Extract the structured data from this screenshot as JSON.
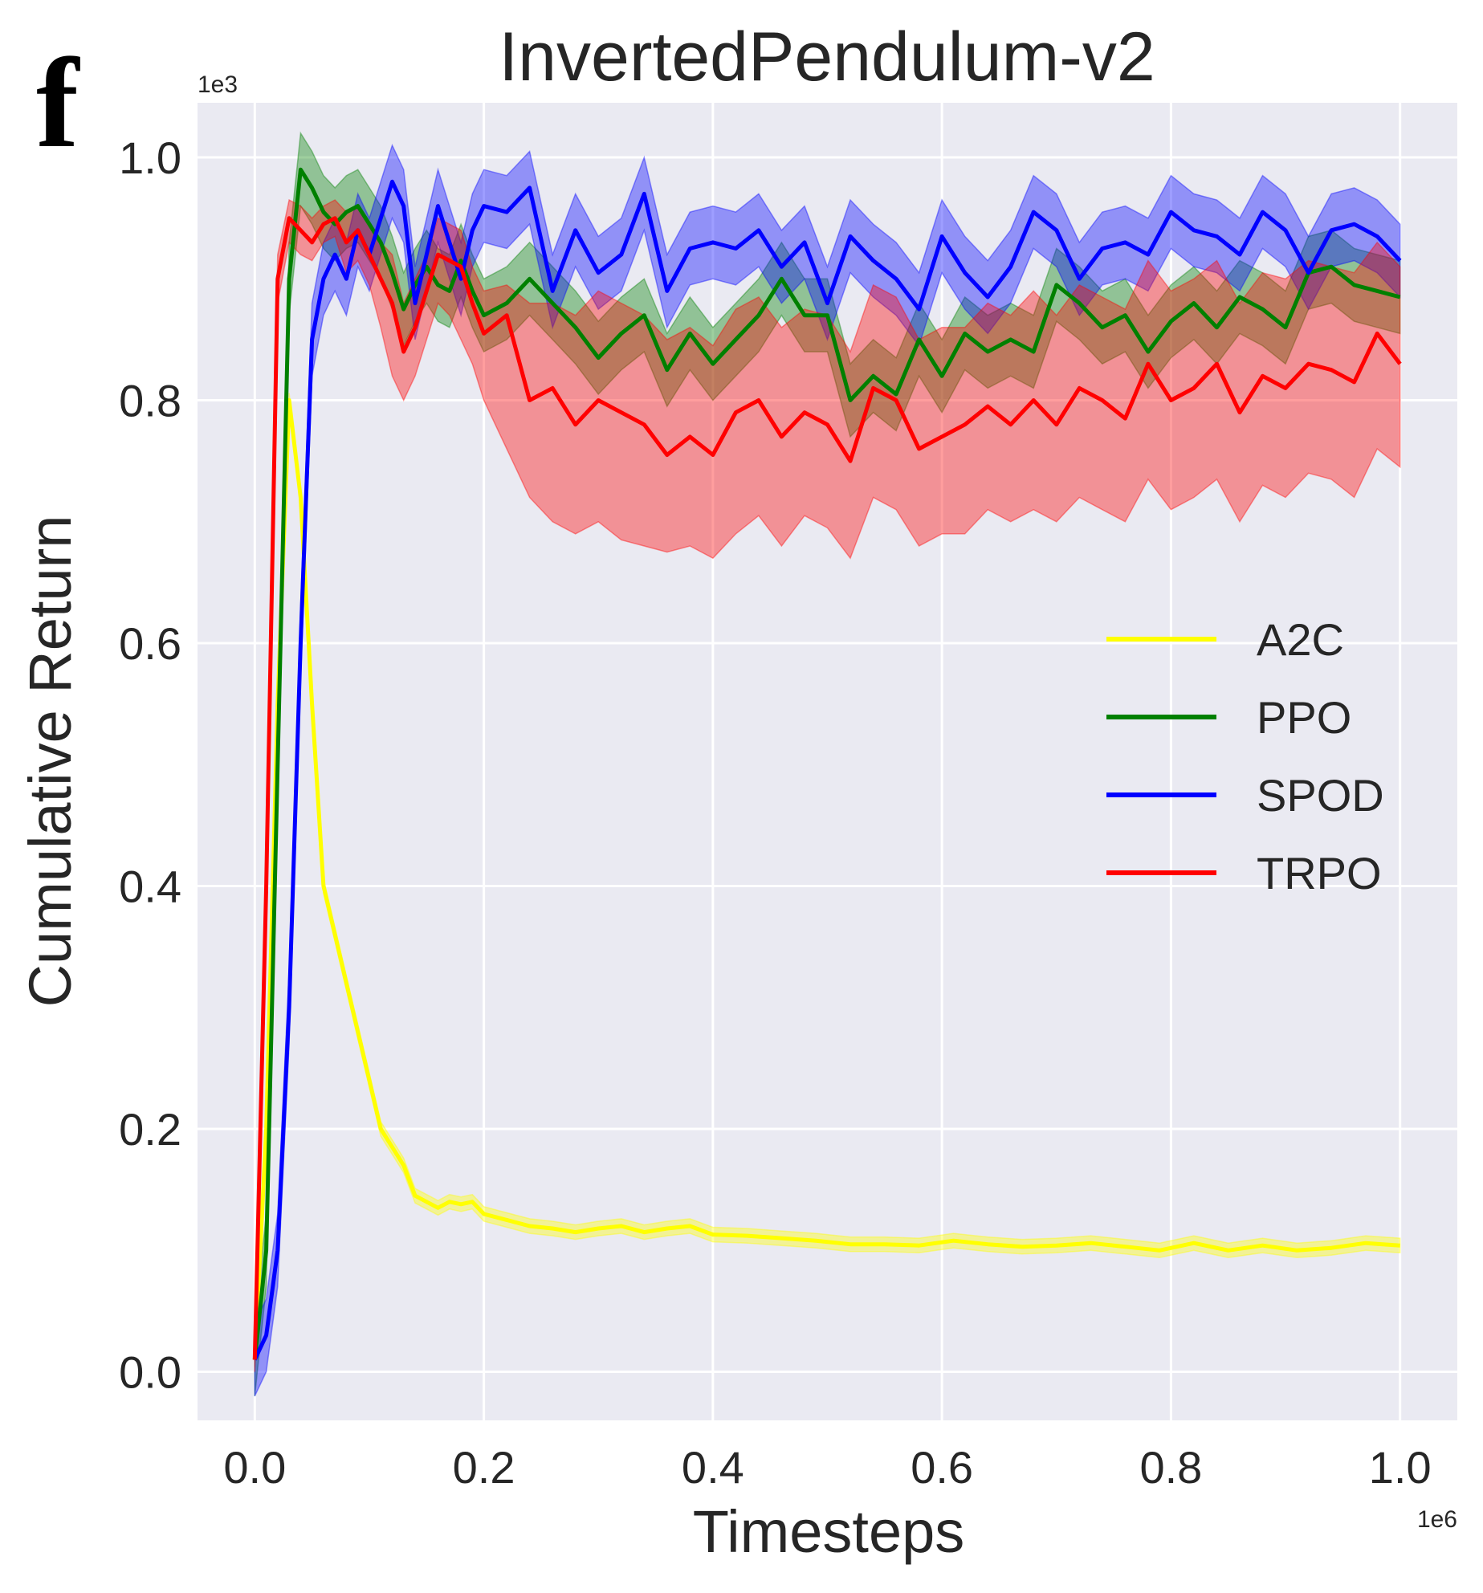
{
  "panel_letter": "f",
  "colors": {
    "plot_bg": "#EAEAF2",
    "grid": "#FFFFFF",
    "A2C": "#FFFF00",
    "PPO": "#008000",
    "SPOD": "#0000FF",
    "TRPO": "#FF0000"
  },
  "chart_data": {
    "type": "line",
    "title": "InvertedPendulum-v2",
    "xlabel": "Timesteps",
    "ylabel": "Cumulative Return",
    "x_multiplier": "1e6",
    "y_multiplier": "1e3",
    "xlim": [
      -0.05,
      1.05
    ],
    "ylim": [
      -0.04,
      1.045
    ],
    "xticks": [
      0.0,
      0.2,
      0.4,
      0.6,
      0.8,
      1.0
    ],
    "xtick_labels": [
      "0.0",
      "0.2",
      "0.4",
      "0.6",
      "0.8",
      "1.0"
    ],
    "yticks": [
      0.0,
      0.2,
      0.4,
      0.6,
      0.8,
      1.0
    ],
    "ytick_labels": [
      "0.0",
      "0.2",
      "0.4",
      "0.6",
      "0.8",
      "1.0"
    ],
    "grid": true,
    "legend_position": "center-right",
    "series": [
      {
        "name": "A2C",
        "color": "#FFFF00",
        "x": [
          0.0,
          0.01,
          0.02,
          0.03,
          0.04,
          0.05,
          0.06,
          0.07,
          0.08,
          0.09,
          0.1,
          0.11,
          0.12,
          0.13,
          0.14,
          0.15,
          0.16,
          0.17,
          0.18,
          0.19,
          0.2,
          0.22,
          0.24,
          0.26,
          0.28,
          0.3,
          0.32,
          0.34,
          0.36,
          0.38,
          0.4,
          0.43,
          0.46,
          0.49,
          0.52,
          0.55,
          0.58,
          0.61,
          0.64,
          0.67,
          0.7,
          0.73,
          0.76,
          0.79,
          0.82,
          0.85,
          0.88,
          0.91,
          0.94,
          0.97,
          1.0
        ],
        "y": [
          0.01,
          0.2,
          0.55,
          0.8,
          0.72,
          0.55,
          0.4,
          0.36,
          0.32,
          0.28,
          0.24,
          0.2,
          0.185,
          0.17,
          0.145,
          0.14,
          0.135,
          0.14,
          0.138,
          0.14,
          0.13,
          0.125,
          0.12,
          0.118,
          0.115,
          0.118,
          0.12,
          0.115,
          0.118,
          0.12,
          0.113,
          0.112,
          0.11,
          0.108,
          0.105,
          0.105,
          0.104,
          0.108,
          0.105,
          0.103,
          0.104,
          0.106,
          0.103,
          0.1,
          0.106,
          0.1,
          0.104,
          0.1,
          0.102,
          0.106,
          0.104
        ],
        "band": 0.006
      },
      {
        "name": "PPO",
        "color": "#008000",
        "x": [
          0.0,
          0.01,
          0.02,
          0.03,
          0.04,
          0.05,
          0.06,
          0.07,
          0.08,
          0.09,
          0.1,
          0.11,
          0.12,
          0.13,
          0.14,
          0.15,
          0.16,
          0.17,
          0.18,
          0.19,
          0.2,
          0.22,
          0.24,
          0.26,
          0.28,
          0.3,
          0.32,
          0.34,
          0.36,
          0.38,
          0.4,
          0.42,
          0.44,
          0.46,
          0.48,
          0.5,
          0.52,
          0.54,
          0.56,
          0.58,
          0.6,
          0.62,
          0.64,
          0.66,
          0.68,
          0.7,
          0.72,
          0.74,
          0.76,
          0.78,
          0.8,
          0.82,
          0.84,
          0.86,
          0.88,
          0.9,
          0.92,
          0.94,
          0.96,
          0.98,
          1.0
        ],
        "y": [
          0.01,
          0.1,
          0.5,
          0.9,
          0.99,
          0.975,
          0.955,
          0.945,
          0.955,
          0.96,
          0.945,
          0.93,
          0.905,
          0.875,
          0.895,
          0.91,
          0.895,
          0.89,
          0.915,
          0.89,
          0.87,
          0.88,
          0.9,
          0.88,
          0.86,
          0.835,
          0.855,
          0.87,
          0.825,
          0.855,
          0.83,
          0.85,
          0.87,
          0.9,
          0.87,
          0.87,
          0.8,
          0.82,
          0.805,
          0.85,
          0.82,
          0.855,
          0.84,
          0.85,
          0.84,
          0.895,
          0.88,
          0.86,
          0.87,
          0.84,
          0.865,
          0.88,
          0.86,
          0.885,
          0.875,
          0.86,
          0.905,
          0.91,
          0.895,
          0.89,
          0.885
        ],
        "band": 0.03
      },
      {
        "name": "SPOD",
        "color": "#0000FF",
        "x": [
          0.0,
          0.01,
          0.02,
          0.03,
          0.04,
          0.05,
          0.06,
          0.07,
          0.08,
          0.09,
          0.1,
          0.11,
          0.12,
          0.13,
          0.14,
          0.15,
          0.16,
          0.17,
          0.18,
          0.19,
          0.2,
          0.22,
          0.24,
          0.26,
          0.28,
          0.3,
          0.32,
          0.34,
          0.36,
          0.38,
          0.4,
          0.42,
          0.44,
          0.46,
          0.48,
          0.5,
          0.52,
          0.54,
          0.56,
          0.58,
          0.6,
          0.62,
          0.64,
          0.66,
          0.68,
          0.7,
          0.72,
          0.74,
          0.76,
          0.78,
          0.8,
          0.82,
          0.84,
          0.86,
          0.88,
          0.9,
          0.92,
          0.94,
          0.96,
          0.98,
          1.0
        ],
        "y": [
          0.01,
          0.03,
          0.1,
          0.3,
          0.6,
          0.85,
          0.9,
          0.92,
          0.9,
          0.94,
          0.92,
          0.95,
          0.98,
          0.96,
          0.88,
          0.92,
          0.96,
          0.93,
          0.9,
          0.94,
          0.96,
          0.955,
          0.975,
          0.89,
          0.94,
          0.905,
          0.92,
          0.97,
          0.89,
          0.925,
          0.93,
          0.925,
          0.94,
          0.91,
          0.93,
          0.88,
          0.935,
          0.915,
          0.9,
          0.875,
          0.935,
          0.905,
          0.885,
          0.91,
          0.955,
          0.94,
          0.9,
          0.925,
          0.93,
          0.92,
          0.955,
          0.94,
          0.935,
          0.92,
          0.955,
          0.94,
          0.905,
          0.94,
          0.945,
          0.935,
          0.915
        ],
        "band": 0.03
      },
      {
        "name": "TRPO",
        "color": "#FF0000",
        "x": [
          0.0,
          0.01,
          0.02,
          0.03,
          0.04,
          0.05,
          0.06,
          0.07,
          0.08,
          0.09,
          0.1,
          0.11,
          0.12,
          0.13,
          0.14,
          0.15,
          0.16,
          0.17,
          0.18,
          0.19,
          0.2,
          0.22,
          0.24,
          0.26,
          0.28,
          0.3,
          0.32,
          0.34,
          0.36,
          0.38,
          0.4,
          0.42,
          0.44,
          0.46,
          0.48,
          0.5,
          0.52,
          0.54,
          0.56,
          0.58,
          0.6,
          0.62,
          0.64,
          0.66,
          0.68,
          0.7,
          0.72,
          0.74,
          0.76,
          0.78,
          0.8,
          0.82,
          0.84,
          0.86,
          0.88,
          0.9,
          0.92,
          0.94,
          0.96,
          0.98,
          1.0
        ],
        "y": [
          0.01,
          0.4,
          0.9,
          0.95,
          0.94,
          0.93,
          0.945,
          0.95,
          0.93,
          0.94,
          0.92,
          0.9,
          0.88,
          0.84,
          0.86,
          0.89,
          0.92,
          0.915,
          0.91,
          0.88,
          0.855,
          0.87,
          0.8,
          0.81,
          0.78,
          0.8,
          0.79,
          0.78,
          0.755,
          0.77,
          0.755,
          0.79,
          0.8,
          0.77,
          0.79,
          0.78,
          0.75,
          0.81,
          0.8,
          0.76,
          0.77,
          0.78,
          0.795,
          0.78,
          0.8,
          0.78,
          0.81,
          0.8,
          0.785,
          0.83,
          0.8,
          0.81,
          0.83,
          0.79,
          0.82,
          0.81,
          0.83,
          0.825,
          0.815,
          0.855,
          0.83
        ],
        "band_lower": [
          0.0,
          0.38,
          0.88,
          0.93,
          0.92,
          0.915,
          0.93,
          0.935,
          0.905,
          0.915,
          0.895,
          0.86,
          0.82,
          0.8,
          0.82,
          0.85,
          0.88,
          0.87,
          0.85,
          0.83,
          0.8,
          0.76,
          0.72,
          0.7,
          0.69,
          0.7,
          0.685,
          0.68,
          0.675,
          0.68,
          0.67,
          0.69,
          0.705,
          0.68,
          0.705,
          0.695,
          0.67,
          0.72,
          0.71,
          0.68,
          0.69,
          0.69,
          0.71,
          0.7,
          0.71,
          0.7,
          0.72,
          0.71,
          0.7,
          0.735,
          0.71,
          0.72,
          0.735,
          0.7,
          0.73,
          0.72,
          0.74,
          0.735,
          0.72,
          0.76,
          0.745
        ],
        "band_upper": [
          0.02,
          0.42,
          0.92,
          0.965,
          0.96,
          0.95,
          0.96,
          0.965,
          0.955,
          0.96,
          0.945,
          0.93,
          0.92,
          0.88,
          0.9,
          0.92,
          0.95,
          0.945,
          0.94,
          0.91,
          0.89,
          0.895,
          0.88,
          0.88,
          0.87,
          0.89,
          0.88,
          0.87,
          0.85,
          0.86,
          0.845,
          0.875,
          0.885,
          0.86,
          0.875,
          0.87,
          0.84,
          0.895,
          0.885,
          0.85,
          0.86,
          0.86,
          0.88,
          0.87,
          0.89,
          0.87,
          0.895,
          0.885,
          0.875,
          0.915,
          0.89,
          0.9,
          0.915,
          0.88,
          0.905,
          0.9,
          0.915,
          0.91,
          0.905,
          0.93,
          0.91
        ]
      }
    ]
  }
}
